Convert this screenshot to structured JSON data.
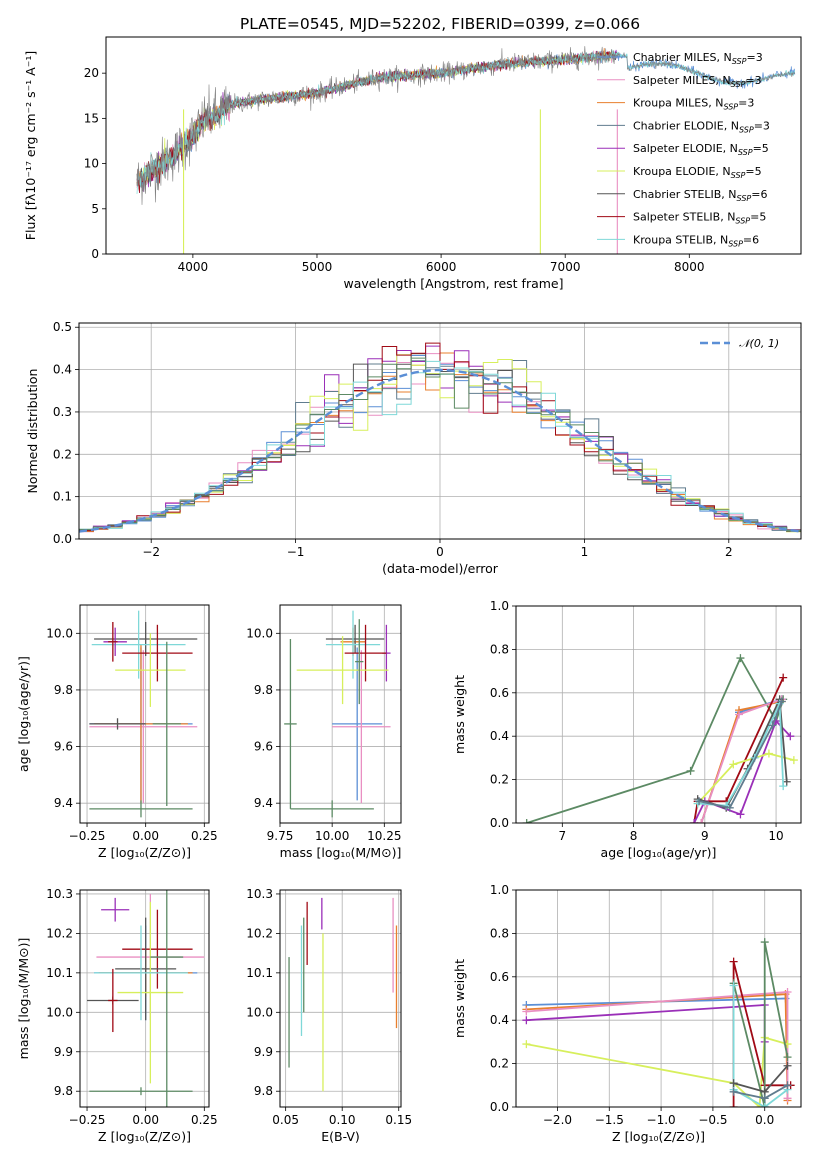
{
  "title": "PLATE=0545, MJD=52202, FIBERID=0399, z=0.066",
  "colors": {
    "chabrier_miles": "#5b8fd6",
    "salpeter_miles": "#e98fc2",
    "kroupa_miles": "#e87f2e",
    "chabrier_elodie": "#607c8e",
    "salpeter_elodie": "#9a2fb8",
    "kroupa_elodie": "#d7ef5c",
    "chabrier_stelib": "#555555",
    "salpeter_stelib": "#a00a15",
    "kroupa_stelib": "#7fd8d8",
    "normal": "#5b8fd6",
    "green": "#5c8a64"
  },
  "chart_data": [
    {
      "id": "spectrum",
      "type": "line",
      "xlabel": "wavelength [Angstrom, rest frame]",
      "ylabel": "Flux [fλ10⁻¹⁷ erg cm⁻² s⁻¹ A⁻¹]",
      "xlim": [
        3300,
        8900
      ],
      "ylim": [
        0,
        24
      ],
      "xticks": [
        4000,
        5000,
        6000,
        7000,
        8000
      ],
      "yticks": [
        0,
        5,
        10,
        15,
        20
      ],
      "grid": false,
      "legend_position": "top-right",
      "data_range": [
        3550,
        8850
      ],
      "continuum_anchors": {
        "x": [
          3550,
          3700,
          3850,
          4000,
          4100,
          4200,
          4300,
          4500,
          4800,
          5000,
          5200,
          5500,
          6000,
          6500,
          7000,
          7400
        ],
        "y": [
          8,
          9.5,
          11,
          13,
          15,
          15.5,
          16.5,
          17,
          17.5,
          17.8,
          18.5,
          19.5,
          20,
          21,
          21.5,
          22
        ]
      },
      "series": [
        {
          "name": "Chabrier MILES, N$_{SSP}$=3",
          "label": "Chabrier MILES, N",
          "sub": "SSP",
          "n": "3",
          "colorKey": "chabrier_miles"
        },
        {
          "name": "Salpeter MILES, N$_{SSP}$=3",
          "label": "Salpeter MILES, N",
          "sub": "SSP",
          "n": "3",
          "colorKey": "salpeter_miles"
        },
        {
          "name": "Kroupa MILES, N$_{SSP}$=3",
          "label": "Kroupa MILES, N",
          "sub": "SSP",
          "n": "3",
          "colorKey": "kroupa_miles"
        },
        {
          "name": "Chabrier ELODIE, N$_{SSP}$=3",
          "label": "Chabrier ELODIE, N",
          "sub": "SSP",
          "n": "3",
          "colorKey": "chabrier_elodie"
        },
        {
          "name": "Salpeter ELODIE, N$_{SSP}$=5",
          "label": "Salpeter ELODIE, N",
          "sub": "SSP",
          "n": "5",
          "colorKey": "salpeter_elodie"
        },
        {
          "name": "Kroupa ELODIE, N$_{SSP}$=5",
          "label": "Kroupa ELODIE, N",
          "sub": "SSP",
          "n": "5",
          "colorKey": "kroupa_elodie"
        },
        {
          "name": "Chabrier STELIB, N$_{SSP}$=6",
          "label": "Chabrier STELIB, N",
          "sub": "SSP",
          "n": "6",
          "colorKey": "chabrier_stelib"
        },
        {
          "name": "Salpeter STELIB, N$_{SSP}$=5",
          "label": "Salpeter STELIB, N",
          "sub": "SSP",
          "n": "5",
          "colorKey": "salpeter_stelib"
        },
        {
          "name": "Kroupa STELIB, N$_{SSP}$=6",
          "label": "Kroupa STELIB, N",
          "sub": "SSP",
          "n": "6",
          "colorKey": "kroupa_stelib"
        }
      ]
    },
    {
      "id": "residuals",
      "type": "histogram",
      "xlabel": "(data-model)/error",
      "ylabel": "Normed distribution",
      "xlim": [
        -2.5,
        2.5
      ],
      "ylim": [
        0,
        0.51
      ],
      "xticks": [
        -2,
        -1,
        0,
        1,
        2
      ],
      "yticks": [
        0.0,
        0.1,
        0.2,
        0.3,
        0.4,
        0.5
      ],
      "grid": true,
      "legend": "𝒩(0, 1)",
      "legend_position": "top-right",
      "bin_width": 0.1
    },
    {
      "id": "age_vs_Z",
      "type": "errorbar",
      "xlabel": "Z [log₁₀(Z/Z⊙)]",
      "ylabel": "age  [log₁₀(age/yr)]",
      "xlim": [
        -0.28,
        0.27
      ],
      "ylim": [
        9.33,
        10.1
      ],
      "xticks": [
        -0.25,
        0.0,
        0.25
      ],
      "xticklabels": [
        "−0.25",
        "0.00",
        "0.25"
      ],
      "yticks": [
        9.4,
        9.6,
        9.8,
        10.0
      ],
      "grid": true,
      "points": [
        {
          "colorKey": "chabrier_miles",
          "x": -0.02,
          "xerr": 0.22,
          "y": 9.68,
          "yerr": 0.27
        },
        {
          "colorKey": "salpeter_miles",
          "x": -0.01,
          "xerr": 0.23,
          "y": 9.67,
          "yerr": 0.27
        },
        {
          "colorKey": "kroupa_miles",
          "x": -0.02,
          "xerr": 0.2,
          "y": 9.68,
          "yerr": 0.28
        },
        {
          "colorKey": "chabrier_stelib",
          "x": 0.0,
          "xerr": 0.22,
          "y": 9.98,
          "yerr": 0.06
        },
        {
          "colorKey": "kroupa_stelib",
          "x": -0.03,
          "xerr": 0.2,
          "y": 9.96,
          "yerr": 0.12
        },
        {
          "colorKey": "salpeter_elodie",
          "x": -0.13,
          "xerr": 0.05,
          "y": 9.97,
          "yerr": 0.05
        },
        {
          "colorKey": "salpeter_stelib",
          "x": 0.05,
          "xerr": 0.15,
          "y": 9.93,
          "yerr": 0.1
        },
        {
          "colorKey": "kroupa_elodie",
          "x": 0.02,
          "xerr": 0.15,
          "y": 9.87,
          "yerr": 0.13
        },
        {
          "colorKey": "green",
          "x": 0.09,
          "xerr": 0.06,
          "y": 9.68,
          "yerr": 0.29
        },
        {
          "colorKey": "green",
          "x": -0.02,
          "xerr": 0.22,
          "y": 9.38,
          "yerr": 0.03
        },
        {
          "colorKey": "chabrier_stelib",
          "x": -0.12,
          "xerr": 0.12,
          "y": 9.68,
          "yerr": 0.02
        },
        {
          "colorKey": "salpeter_stelib",
          "x": -0.14,
          "xerr": 0.02,
          "y": 9.97,
          "yerr": 0.07
        }
      ]
    },
    {
      "id": "age_vs_mass",
      "type": "errorbar",
      "xlabel": "mass [log₁₀(M/M⊙)]",
      "xlim": [
        9.75,
        10.33
      ],
      "ylim": [
        9.33,
        10.1
      ],
      "xticks": [
        9.75,
        10.0,
        10.25
      ],
      "xticklabels": [
        "9.75",
        "10.00",
        "10.25"
      ],
      "yticks": [
        9.4,
        9.6,
        9.8,
        10.0
      ],
      "grid": true,
      "points": [
        {
          "colorKey": "chabrier_miles",
          "x": 10.12,
          "xerr": 0.12,
          "y": 9.68,
          "yerr": 0.27
        },
        {
          "colorKey": "salpeter_miles",
          "x": 10.14,
          "xerr": 0.14,
          "y": 9.67,
          "yerr": 0.27
        },
        {
          "colorKey": "kroupa_miles",
          "x": 10.1,
          "xerr": 0.06,
          "y": 9.97,
          "yerr": 0.05
        },
        {
          "colorKey": "chabrier_stelib",
          "x": 10.11,
          "xerr": 0.14,
          "y": 9.98,
          "yerr": 0.05
        },
        {
          "colorKey": "kroupa_stelib",
          "x": 10.1,
          "xerr": 0.13,
          "y": 9.96,
          "yerr": 0.12
        },
        {
          "colorKey": "salpeter_elodie",
          "x": 10.26,
          "xerr": 0.02,
          "y": 9.93,
          "yerr": 0.1
        },
        {
          "colorKey": "salpeter_stelib",
          "x": 10.16,
          "xerr": 0.1,
          "y": 9.93,
          "yerr": 0.1
        },
        {
          "colorKey": "kroupa_elodie",
          "x": 10.05,
          "xerr": 0.22,
          "y": 9.87,
          "yerr": 0.12
        },
        {
          "colorKey": "green",
          "x": 9.8,
          "xerr": 0.03,
          "y": 9.68,
          "yerr": 0.3
        },
        {
          "colorKey": "green",
          "x": 10.0,
          "xerr": 0.2,
          "y": 9.38,
          "yerr": 0.03
        },
        {
          "colorKey": "green",
          "x": 10.13,
          "xerr": 0.02,
          "y": 9.9,
          "yerr": 0.15
        }
      ]
    },
    {
      "id": "weight_vs_age",
      "type": "line",
      "xlabel": "age  [log₁₀(age/yr)]",
      "ylabel": "mass weight",
      "xlim": [
        6.35,
        10.35
      ],
      "ylim": [
        0,
        1.0
      ],
      "xticks": [
        7,
        8,
        9,
        10
      ],
      "yticks": [
        0.0,
        0.2,
        0.4,
        0.6,
        0.8,
        1.0
      ],
      "grid": true,
      "series": [
        {
          "colorKey": "green",
          "x": [
            6.5,
            8.8,
            9.5,
            10.0,
            10.1
          ],
          "y": [
            0.0,
            0.24,
            0.76,
            0.47,
            0.57
          ]
        },
        {
          "colorKey": "chabrier_miles",
          "x": [
            8.95,
            9.48,
            10.08
          ],
          "y": [
            0.0,
            0.51,
            0.57
          ]
        },
        {
          "colorKey": "kroupa_miles",
          "x": [
            8.95,
            9.48,
            10.08
          ],
          "y": [
            0.0,
            0.52,
            0.56
          ]
        },
        {
          "colorKey": "salpeter_miles",
          "x": [
            8.95,
            9.48,
            10.08
          ],
          "y": [
            0.0,
            0.5,
            0.57
          ]
        },
        {
          "colorKey": "salpeter_stelib",
          "x": [
            8.85,
            8.9,
            9.3,
            10.1
          ],
          "y": [
            0.0,
            0.1,
            0.1,
            0.67
          ]
        },
        {
          "colorKey": "salpeter_elodie",
          "x": [
            8.85,
            9.0,
            9.5,
            10.0,
            10.2
          ],
          "y": [
            0.0,
            0.1,
            0.04,
            0.47,
            0.4
          ]
        },
        {
          "colorKey": "kroupa_elodie",
          "x": [
            8.9,
            9.4,
            9.9,
            10.25
          ],
          "y": [
            0.09,
            0.27,
            0.32,
            0.29
          ]
        },
        {
          "colorKey": "chabrier_stelib",
          "x": [
            8.9,
            9.3,
            9.6,
            10.05,
            10.15
          ],
          "y": [
            0.11,
            0.07,
            0.25,
            0.57,
            0.19
          ]
        },
        {
          "colorKey": "kroupa_stelib",
          "x": [
            8.9,
            9.3,
            9.7,
            10.05,
            10.1
          ],
          "y": [
            0.09,
            0.08,
            0.3,
            0.55,
            0.17
          ]
        },
        {
          "colorKey": "chabrier_elodie",
          "x": [
            8.92,
            9.35,
            9.95,
            10.08
          ],
          "y": [
            0.1,
            0.07,
            0.45,
            0.56
          ]
        }
      ]
    },
    {
      "id": "mass_vs_Z",
      "type": "errorbar",
      "xlabel": "Z [log₁₀(Z/Z⊙)]",
      "ylabel": "mass [log₁₀(M/M⊙)]",
      "xlim": [
        -0.28,
        0.27
      ],
      "ylim": [
        9.76,
        10.31
      ],
      "xticks": [
        -0.25,
        0.0,
        0.25
      ],
      "xticklabels": [
        "−0.25",
        "0.00",
        "0.25"
      ],
      "yticks": [
        9.8,
        9.9,
        10.0,
        10.1,
        10.2,
        10.3
      ],
      "grid": true,
      "points": [
        {
          "colorKey": "chabrier_miles",
          "x": 0.0,
          "xerr": 0.22,
          "y": 10.1,
          "yerr": 0.12
        },
        {
          "colorKey": "salpeter_miles",
          "x": 0.02,
          "xerr": 0.23,
          "y": 10.14,
          "yerr": 0.16
        },
        {
          "colorKey": "kroupa_miles",
          "x": 0.0,
          "xerr": 0.2,
          "y": 10.1,
          "yerr": 0.06
        },
        {
          "colorKey": "salpeter_elodie",
          "x": -0.13,
          "xerr": 0.06,
          "y": 10.26,
          "yerr": 0.03
        },
        {
          "colorKey": "salpeter_stelib",
          "x": 0.05,
          "xerr": 0.15,
          "y": 10.16,
          "yerr": 0.1
        },
        {
          "colorKey": "chabrier_stelib",
          "x": 0.0,
          "xerr": 0.13,
          "y": 10.11,
          "yerr": 0.13
        },
        {
          "colorKey": "kroupa_elodie",
          "x": 0.02,
          "xerr": 0.14,
          "y": 10.05,
          "yerr": 0.23
        },
        {
          "colorKey": "kroupa_stelib",
          "x": -0.02,
          "xerr": 0.2,
          "y": 10.1,
          "yerr": 0.12
        },
        {
          "colorKey": "green",
          "x": 0.09,
          "xerr": 0.07,
          "y": 10.14,
          "yerr": 0.38
        },
        {
          "colorKey": "green",
          "x": -0.02,
          "xerr": 0.22,
          "y": 9.8,
          "yerr": 0.01
        },
        {
          "colorKey": "chabrier_stelib",
          "x": -0.14,
          "xerr": 0.11,
          "y": 10.03,
          "yerr": 0.01
        },
        {
          "colorKey": "salpeter_stelib",
          "x": -0.14,
          "xerr": 0.02,
          "y": 10.03,
          "yerr": 0.08
        }
      ]
    },
    {
      "id": "mass_vs_ebv",
      "type": "errorbar",
      "xlabel": "E(B-V)",
      "xlim": [
        0.045,
        0.152
      ],
      "ylim": [
        9.76,
        10.31
      ],
      "xticks": [
        0.05,
        0.1,
        0.15
      ],
      "xticklabels": [
        "0.05",
        "0.10",
        "0.15"
      ],
      "yticks": [
        9.8,
        9.9,
        10.0,
        10.1,
        10.2,
        10.3
      ],
      "grid": true,
      "points": [
        {
          "colorKey": "green",
          "x": 0.053,
          "y": 10.0,
          "yerr": 0.14
        },
        {
          "colorKey": "green",
          "x": 0.066,
          "y": 10.12,
          "yerr": 0.12
        },
        {
          "colorKey": "kroupa_stelib",
          "x": 0.064,
          "y": 10.08,
          "yerr": 0.14
        },
        {
          "colorKey": "salpeter_stelib",
          "x": 0.069,
          "y": 10.2,
          "yerr": 0.08
        },
        {
          "colorKey": "salpeter_elodie",
          "x": 0.082,
          "y": 10.25,
          "yerr": 0.04
        },
        {
          "colorKey": "kroupa_elodie",
          "x": 0.083,
          "y": 10.0,
          "yerr": 0.2
        },
        {
          "colorKey": "salpeter_miles",
          "x": 0.145,
          "y": 10.17,
          "yerr": 0.12
        },
        {
          "colorKey": "kroupa_miles",
          "x": 0.148,
          "y": 10.09,
          "yerr": 0.13
        }
      ]
    },
    {
      "id": "weight_vs_Z",
      "type": "line",
      "xlabel": "Z [log₁₀(Z/Z⊙)]",
      "ylabel": "mass weight",
      "xlim": [
        -2.4,
        0.35
      ],
      "ylim": [
        0,
        1.0
      ],
      "xticks": [
        -2.0,
        -1.5,
        -1.0,
        -0.5,
        0.0
      ],
      "xticklabels": [
        "−2.0",
        "−1.5",
        "−1.0",
        "−0.5",
        "0.0"
      ],
      "yticks": [
        0.0,
        0.2,
        0.4,
        0.6,
        0.8,
        1.0
      ],
      "grid": true,
      "series": [
        {
          "colorKey": "chabrier_miles",
          "x": [
            -2.3,
            0.2
          ],
          "y": [
            0.47,
            0.5
          ]
        },
        {
          "colorKey": "kroupa_miles",
          "x": [
            -2.3,
            0.2,
            0.22
          ],
          "y": [
            0.45,
            0.52,
            0.03
          ]
        },
        {
          "colorKey": "salpeter_miles",
          "x": [
            -2.3,
            0.22,
            0.22
          ],
          "y": [
            0.44,
            0.53,
            0.04
          ]
        },
        {
          "colorKey": "salpeter_elodie",
          "x": [
            -2.3,
            0.0,
            0.0
          ],
          "y": [
            0.4,
            0.47,
            0.3
          ]
        },
        {
          "colorKey": "kroupa_elodie",
          "x": [
            -2.3,
            -0.3,
            -0.05,
            0.0,
            0.22
          ],
          "y": [
            0.29,
            0.11,
            0.0,
            0.32,
            0.29
          ]
        },
        {
          "colorKey": "salpeter_stelib",
          "x": [
            -0.3,
            -0.3,
            0.0,
            0.25
          ],
          "y": [
            0.0,
            0.67,
            0.1,
            0.1
          ]
        },
        {
          "colorKey": "green",
          "x": [
            -0.3,
            0.0,
            0.0,
            0.22
          ],
          "y": [
            0.57,
            0.0,
            0.76,
            0.23
          ]
        },
        {
          "colorKey": "kroupa_stelib",
          "x": [
            -0.3,
            -0.3,
            0.0,
            0.22
          ],
          "y": [
            0.56,
            0.08,
            0.0,
            0.08
          ]
        },
        {
          "colorKey": "chabrier_stelib",
          "x": [
            -0.3,
            0.0,
            0.22
          ],
          "y": [
            0.11,
            0.07,
            0.19
          ]
        },
        {
          "colorKey": "chabrier_elodie",
          "x": [
            -0.3,
            0.0,
            0.22
          ],
          "y": [
            0.07,
            0.04,
            0.1
          ]
        }
      ]
    }
  ]
}
